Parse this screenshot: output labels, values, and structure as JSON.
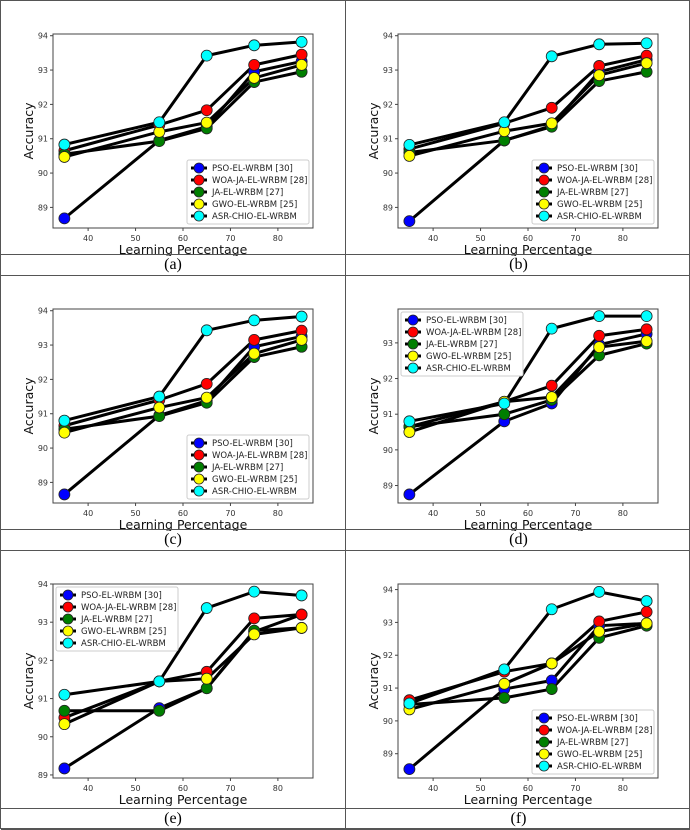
{
  "chart_data": [
    {
      "type": "line",
      "caption": "(a)",
      "xlabel": "Learning Percentage",
      "ylabel": "Accuracy",
      "x": [
        35,
        55,
        65,
        75,
        85
      ],
      "xlim": [
        32.6,
        87.4
      ],
      "ylim": [
        88.4,
        94.05
      ],
      "xticks": [
        40,
        50,
        60,
        70,
        80
      ],
      "yticks": [
        89,
        90,
        91,
        92,
        93,
        94
      ],
      "legend": "lower-right",
      "series": [
        {
          "name": "PSO-EL-WRBM [30]",
          "color": "#0000ff",
          "values": [
            88.68,
            90.95,
            91.35,
            92.95,
            93.25
          ]
        },
        {
          "name": "WOA-JA-EL-WRBM [28]",
          "color": "#ff0000",
          "values": [
            90.65,
            91.4,
            91.83,
            93.15,
            93.45
          ]
        },
        {
          "name": "JA-EL-WRBM [27]",
          "color": "#007f00",
          "values": [
            90.55,
            90.93,
            91.3,
            92.65,
            92.95
          ]
        },
        {
          "name": "GWO-EL-WRBM [25]",
          "color": "#ffff00",
          "values": [
            90.47,
            91.2,
            91.47,
            92.77,
            93.15
          ]
        },
        {
          "name": "ASR-CHIO-EL-WRBM",
          "color": "#00ffff",
          "values": [
            90.83,
            91.48,
            93.42,
            93.72,
            93.82
          ]
        }
      ]
    },
    {
      "type": "line",
      "caption": "(b)",
      "xlabel": "Learning Percentage",
      "ylabel": "Accuracy",
      "x": [
        35,
        55,
        65,
        75,
        85
      ],
      "xlim": [
        32.6,
        87.4
      ],
      "ylim": [
        88.4,
        94.05
      ],
      "xticks": [
        40,
        50,
        60,
        70,
        80
      ],
      "yticks": [
        89,
        90,
        91,
        92,
        93,
        94
      ],
      "legend": "lower-right",
      "series": [
        {
          "name": "PSO-EL-WRBM [30]",
          "color": "#0000ff",
          "values": [
            88.6,
            90.95,
            91.38,
            92.95,
            93.3
          ]
        },
        {
          "name": "WOA-JA-EL-WRBM [28]",
          "color": "#ff0000",
          "values": [
            90.7,
            91.45,
            91.9,
            93.12,
            93.42
          ]
        },
        {
          "name": "JA-EL-WRBM [27]",
          "color": "#007f00",
          "values": [
            90.6,
            90.95,
            91.35,
            92.68,
            92.95
          ]
        },
        {
          "name": "GWO-EL-WRBM [25]",
          "color": "#ffff00",
          "values": [
            90.5,
            91.22,
            91.45,
            92.85,
            93.2
          ]
        },
        {
          "name": "ASR-CHIO-EL-WRBM",
          "color": "#00ffff",
          "values": [
            90.82,
            91.48,
            93.4,
            93.75,
            93.78
          ]
        }
      ]
    },
    {
      "type": "line",
      "caption": "(c)",
      "xlabel": "Learning Percentage",
      "ylabel": "Accuracy",
      "x": [
        35,
        55,
        65,
        75,
        85
      ],
      "xlim": [
        32.6,
        87.4
      ],
      "ylim": [
        88.4,
        94.05
      ],
      "xticks": [
        40,
        50,
        60,
        70,
        80
      ],
      "yticks": [
        89,
        90,
        91,
        92,
        93,
        94
      ],
      "legend": "lower-right",
      "series": [
        {
          "name": "PSO-EL-WRBM [30]",
          "color": "#0000ff",
          "values": [
            88.65,
            90.95,
            91.38,
            92.95,
            93.25
          ]
        },
        {
          "name": "WOA-JA-EL-WRBM [28]",
          "color": "#ff0000",
          "values": [
            90.65,
            91.4,
            91.87,
            93.15,
            93.42
          ]
        },
        {
          "name": "JA-EL-WRBM [27]",
          "color": "#007f00",
          "values": [
            90.55,
            90.93,
            91.32,
            92.65,
            92.95
          ]
        },
        {
          "name": "GWO-EL-WRBM [25]",
          "color": "#ffff00",
          "values": [
            90.45,
            91.18,
            91.47,
            92.75,
            93.15
          ]
        },
        {
          "name": "ASR-CHIO-EL-WRBM",
          "color": "#00ffff",
          "values": [
            90.8,
            91.5,
            93.43,
            93.72,
            93.83
          ]
        }
      ]
    },
    {
      "type": "line",
      "caption": "(d)",
      "xlabel": "Learning Percentage",
      "ylabel": "Accuracy",
      "x": [
        35,
        55,
        65,
        75,
        85
      ],
      "xlim": [
        32.6,
        87.4
      ],
      "ylim": [
        88.51,
        93.95
      ],
      "xticks": [
        40,
        50,
        60,
        70,
        80
      ],
      "yticks": [
        89,
        90,
        91,
        92,
        93
      ],
      "legend": "upper-left",
      "series": [
        {
          "name": "PSO-EL-WRBM [30]",
          "color": "#0000ff",
          "values": [
            88.75,
            90.8,
            91.3,
            92.95,
            93.25
          ]
        },
        {
          "name": "WOA-JA-EL-WRBM [28]",
          "color": "#ff0000",
          "values": [
            90.65,
            91.35,
            91.8,
            93.2,
            93.38
          ]
        },
        {
          "name": "JA-EL-WRBM [27]",
          "color": "#007f00",
          "values": [
            90.65,
            91.0,
            91.4,
            92.65,
            92.98
          ]
        },
        {
          "name": "GWO-EL-WRBM [25]",
          "color": "#ffff00",
          "values": [
            90.5,
            91.35,
            91.48,
            92.88,
            93.05
          ]
        },
        {
          "name": "ASR-CHIO-EL-WRBM",
          "color": "#00ffff",
          "values": [
            90.8,
            91.3,
            93.4,
            93.75,
            93.75
          ]
        }
      ]
    },
    {
      "type": "line",
      "caption": "(e)",
      "xlabel": "Learning Percentage",
      "ylabel": "Accuracy",
      "x": [
        35,
        55,
        65,
        75,
        85
      ],
      "xlim": [
        32.6,
        87.4
      ],
      "ylim": [
        88.92,
        94.0
      ],
      "xticks": [
        40,
        50,
        60,
        70,
        80
      ],
      "yticks": [
        89,
        90,
        91,
        92,
        93,
        94
      ],
      "legend": "upper-left",
      "series": [
        {
          "name": "PSO-EL-WRBM [30]",
          "color": "#0000ff",
          "values": [
            89.17,
            90.75,
            91.27,
            92.75,
            93.2
          ]
        },
        {
          "name": "WOA-JA-EL-WRBM [28]",
          "color": "#ff0000",
          "values": [
            90.5,
            91.45,
            91.7,
            93.1,
            93.2
          ]
        },
        {
          "name": "JA-EL-WRBM [27]",
          "color": "#007f00",
          "values": [
            90.68,
            90.68,
            91.27,
            92.78,
            92.85
          ]
        },
        {
          "name": "GWO-EL-WRBM [25]",
          "color": "#ffff00",
          "values": [
            90.33,
            91.45,
            91.52,
            92.68,
            92.85
          ]
        },
        {
          "name": "ASR-CHIO-EL-WRBM",
          "color": "#00ffff",
          "values": [
            91.1,
            91.45,
            93.37,
            93.8,
            93.7
          ]
        }
      ]
    },
    {
      "type": "line",
      "caption": "(f)",
      "xlabel": "Learning Percentage",
      "ylabel": "Accuracy",
      "x": [
        35,
        55,
        65,
        75,
        85
      ],
      "xlim": [
        32.6,
        87.4
      ],
      "ylim": [
        88.26,
        94.17
      ],
      "xticks": [
        40,
        50,
        60,
        70,
        80
      ],
      "yticks": [
        89,
        90,
        91,
        92,
        93,
        94
      ],
      "legend": "lower-right",
      "series": [
        {
          "name": "PSO-EL-WRBM [30]",
          "color": "#0000ff",
          "values": [
            88.53,
            90.97,
            91.23,
            92.9,
            92.97
          ]
        },
        {
          "name": "WOA-JA-EL-WRBM [28]",
          "color": "#ff0000",
          "values": [
            90.63,
            91.5,
            91.75,
            93.03,
            93.32
          ]
        },
        {
          "name": "JA-EL-WRBM [27]",
          "color": "#007f00",
          "values": [
            90.5,
            90.7,
            90.97,
            92.53,
            92.9
          ]
        },
        {
          "name": "GWO-EL-WRBM [25]",
          "color": "#ffff00",
          "values": [
            90.35,
            91.13,
            91.75,
            92.72,
            92.97
          ]
        },
        {
          "name": "ASR-CHIO-EL-WRBM",
          "color": "#00ffff",
          "values": [
            90.53,
            91.57,
            93.4,
            93.93,
            93.65
          ]
        }
      ]
    }
  ]
}
